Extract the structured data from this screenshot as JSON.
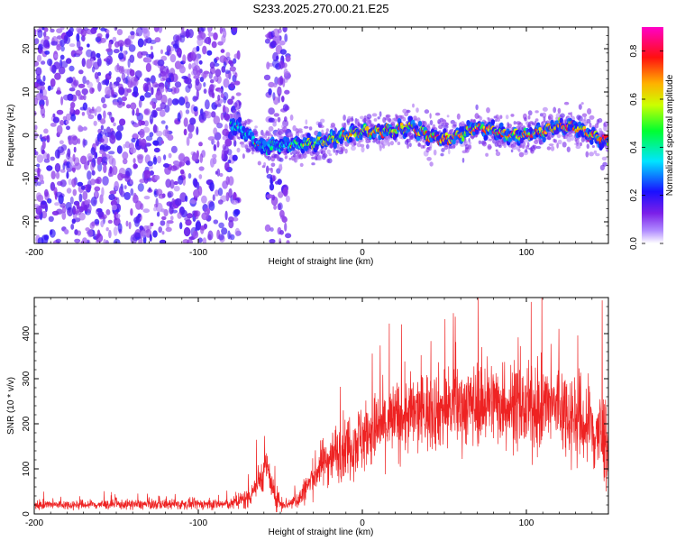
{
  "title": "S233.2025.270.00.21.E25",
  "chart_data": [
    {
      "type": "heatmap",
      "xlabel": "Height of straight line (km)",
      "ylabel": "Frequency (Hz)",
      "xlim": [
        -200,
        150
      ],
      "ylim": [
        -25,
        25
      ],
      "xticks": [
        -200,
        -100,
        0,
        100
      ],
      "yticks": [
        -20,
        -10,
        0,
        10,
        20
      ],
      "colorbar": {
        "label": "Normalized spectral amplitude",
        "range": [
          0.0,
          0.9
        ],
        "ticks": [
          0.0,
          0.2,
          0.4,
          0.6,
          0.8
        ],
        "colormap": "rainbow",
        "colors": [
          "#ffffff",
          "#8a2be2",
          "#0000ff",
          "#00ffff",
          "#00ff00",
          "#ffff00",
          "#ff8000",
          "#ff0000",
          "#ff00ff"
        ]
      },
      "noise_regions": [
        {
          "x_range": [
            -200,
            -75
          ],
          "y_range": [
            -25,
            25
          ],
          "amplitude": 0.1
        },
        {
          "x_range": [
            -58,
            -45
          ],
          "y_range": [
            -25,
            25
          ],
          "amplitude": 0.1
        }
      ],
      "ridge": {
        "x": [
          -80,
          -70,
          -60,
          -50,
          -40,
          -30,
          -20,
          -10,
          0,
          10,
          20,
          30,
          40,
          50,
          60,
          70,
          80,
          90,
          100,
          110,
          120,
          130,
          140,
          150
        ],
        "y": [
          3,
          0,
          -3,
          -2,
          -2,
          -2,
          -1,
          0,
          1,
          1,
          1,
          2,
          0,
          -1,
          0,
          2,
          1,
          0,
          0,
          1,
          2,
          2,
          0,
          -2
        ],
        "peak_amplitude": 0.8
      }
    },
    {
      "type": "line",
      "xlabel": "Height of straight line (km)",
      "ylabel": "SNR (10 * v/v)",
      "xlim": [
        -200,
        150
      ],
      "ylim": [
        0,
        480
      ],
      "xticks": [
        -200,
        -100,
        0,
        100
      ],
      "yticks": [
        0,
        100,
        200,
        300,
        400
      ],
      "color": "#ee2222",
      "baseline": {
        "x": [
          -200,
          -80,
          -70,
          -62,
          -58,
          -55,
          -50,
          -45,
          -38,
          -32,
          -25,
          -15,
          0,
          20,
          40,
          60,
          80,
          100,
          120,
          135,
          150
        ],
        "y": [
          20,
          22,
          35,
          80,
          110,
          50,
          25,
          22,
          35,
          70,
          110,
          140,
          170,
          210,
          230,
          240,
          250,
          230,
          240,
          200,
          160
        ]
      },
      "spread": {
        "x": [
          -200,
          -80,
          -60,
          -45,
          -35,
          -20,
          0,
          40,
          100,
          150
        ],
        "y": [
          10,
          12,
          40,
          12,
          30,
          60,
          80,
          90,
          90,
          110
        ]
      }
    }
  ]
}
